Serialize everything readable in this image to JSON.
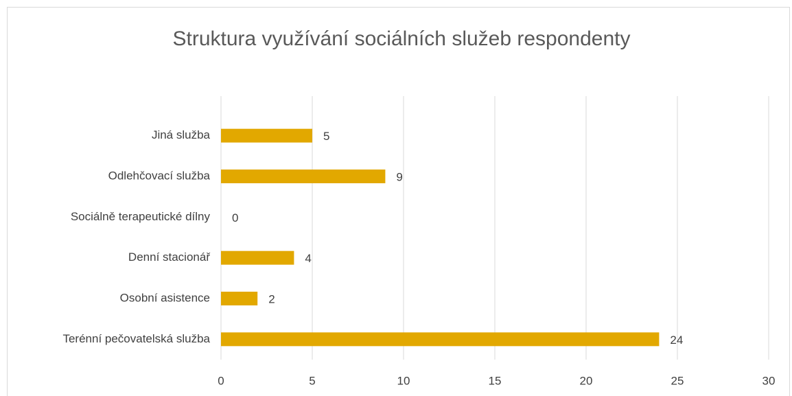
{
  "chart_data": {
    "type": "hbar",
    "title": "Struktura využívání sociálních služeb respondenty",
    "categories": [
      "Terénní pečovatelská služba",
      "Osobní asistence",
      "Denní stacionář",
      "Sociálně terapeutické dílny",
      "Odlehčovací služba",
      "Jiná služba"
    ],
    "values": [
      24,
      2,
      4,
      0,
      9,
      5
    ],
    "color": "#e2a800",
    "xlim": [
      0,
      30
    ],
    "xticks": [
      0,
      5,
      10,
      15,
      20,
      25,
      30
    ],
    "grid": true
  }
}
